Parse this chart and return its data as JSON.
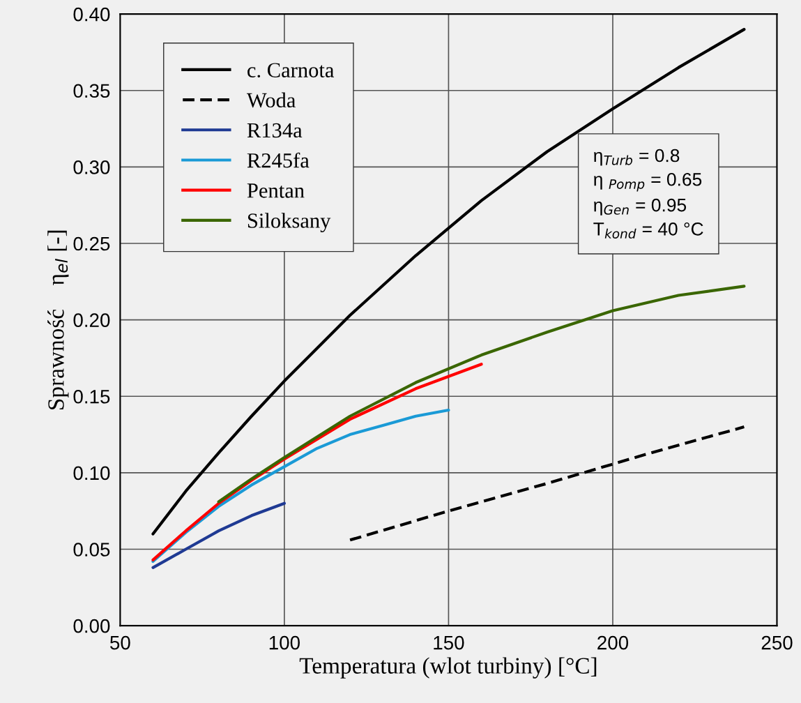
{
  "chart_data": {
    "type": "line",
    "xlabel": "Temperatura (wlot turbiny) [°C]",
    "ylabel": "Sprawność    η$_{el}$ [-]",
    "xlim": [
      50,
      250
    ],
    "xticks": [
      50,
      100,
      150,
      200,
      250
    ],
    "ylim": [
      0,
      0.4
    ],
    "yticks": [
      {
        "value": 0,
        "label": "0.00"
      },
      {
        "value": 0.05,
        "label": "0.05"
      },
      {
        "value": 0.1,
        "label": "0.10"
      },
      {
        "value": 0.15,
        "label": "0.15"
      },
      {
        "value": 0.2,
        "label": "0.20"
      },
      {
        "value": 0.25,
        "label": "0.25"
      },
      {
        "value": 0.3,
        "label": "0.30"
      },
      {
        "value": 0.35,
        "label": "0.35"
      },
      {
        "value": 0.4,
        "label": "0.40"
      }
    ],
    "grid": true,
    "legend": "top left",
    "marker": "none",
    "annotations": [
      "η$_{Turb}$ = 0.8",
      "η $_{Pomp}$ = 0.65",
      "η$_{Gen}$ = 0.95",
      "T$_{kond}$ = 40 °C"
    ],
    "series": [
      {
        "name": "c. Carnota",
        "color": "#000000",
        "line_style": "solid",
        "x": [
          60,
          70,
          80,
          90,
          100,
          120,
          140,
          150,
          160,
          180,
          200,
          220,
          240
        ],
        "values": [
          0.06,
          0.088,
          0.113,
          0.137,
          0.16,
          0.203,
          0.242,
          0.26,
          0.278,
          0.31,
          0.338,
          0.365,
          0.39
        ]
      },
      {
        "name": "Woda",
        "color": "#000000",
        "line_style": "dashed",
        "x": [
          120,
          150,
          180,
          210,
          240
        ],
        "values": [
          0.056,
          0.075,
          0.093,
          0.112,
          0.13
        ]
      },
      {
        "name": "R134a",
        "color": "#1f3a93",
        "line_style": "solid",
        "x": [
          60,
          70,
          80,
          90,
          100
        ],
        "values": [
          0.038,
          0.05,
          0.062,
          0.072,
          0.08
        ]
      },
      {
        "name": "R245fa",
        "color": "#1a9ad6",
        "line_style": "solid",
        "x": [
          60,
          70,
          80,
          90,
          100,
          110,
          120,
          130,
          140,
          150
        ],
        "values": [
          0.042,
          0.061,
          0.078,
          0.092,
          0.104,
          0.116,
          0.125,
          0.131,
          0.137,
          0.141
        ]
      },
      {
        "name": "Pentan",
        "color": "#ff0000",
        "line_style": "solid",
        "x": [
          60,
          70,
          80,
          90,
          100,
          120,
          140,
          160
        ],
        "values": [
          0.043,
          0.062,
          0.08,
          0.095,
          0.109,
          0.135,
          0.155,
          0.171
        ]
      },
      {
        "name": "Siloksany",
        "color": "#3a6600",
        "line_style": "solid",
        "x": [
          80,
          90,
          100,
          120,
          140,
          160,
          180,
          200,
          220,
          240
        ],
        "values": [
          0.081,
          0.096,
          0.11,
          0.137,
          0.159,
          0.177,
          0.192,
          0.206,
          0.216,
          0.222
        ]
      }
    ]
  }
}
